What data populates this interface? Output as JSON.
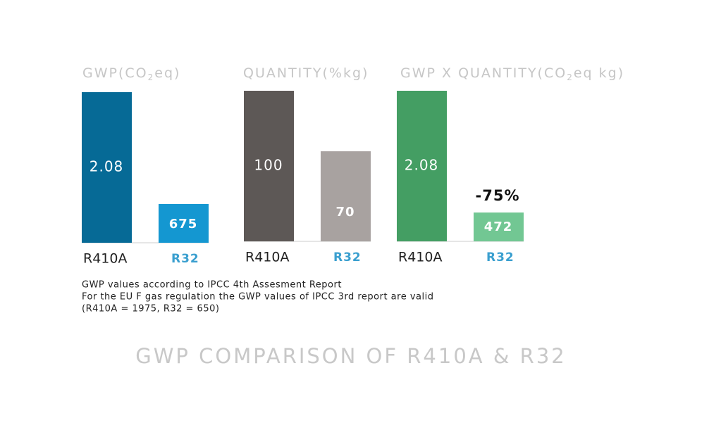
{
  "panels": [
    {
      "title": [
        "GWP(CO",
        "2",
        "eq)"
      ],
      "bars": [
        "2.08",
        "675"
      ],
      "categories": [
        "R410A",
        "R32"
      ]
    },
    {
      "title": [
        "QUANTITY(%kg)"
      ],
      "bars": [
        "100",
        "70"
      ],
      "categories": [
        "R410A",
        "R32"
      ]
    },
    {
      "title": [
        "GWP X QUANTITY(CO",
        "2",
        "eq kg)"
      ],
      "bars": [
        "2.08",
        "472"
      ],
      "categories": [
        "R410A",
        "R32"
      ],
      "annotation": "-75%"
    }
  ],
  "notes": [
    "GWP values according to IPCC 4th Assesment Report",
    "For the EU F gas regulation the GWP values of IPCC 3rd report are valid",
    "(R410A = 1975, R32 = 650)"
  ],
  "footer": "GWP COMPARISON OF R410A & R32"
}
